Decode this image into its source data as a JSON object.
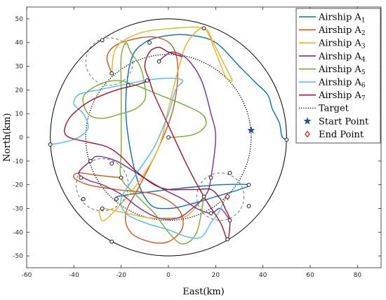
{
  "chart_data": {
    "type": "line",
    "xlabel": "East(km)",
    "ylabel": "North(km)",
    "xlim": [
      -60,
      90
    ],
    "ylim": [
      -55,
      55
    ],
    "xticks": [
      -60,
      -40,
      -20,
      0,
      20,
      40,
      60,
      80
    ],
    "yticks": [
      -50,
      -40,
      -30,
      -20,
      -10,
      0,
      10,
      20,
      30,
      40,
      50
    ],
    "grid": false,
    "legend_position": "top-right",
    "boundary_circle": {
      "cx": 0,
      "cy": 0,
      "r": 50
    },
    "target_circle": {
      "cx": 0,
      "cy": 0,
      "r": 35
    },
    "start_point": [
      35,
      3
    ],
    "end_point": [
      25,
      -25
    ],
    "markers": [
      [
        -28,
        41
      ],
      [
        -24,
        27
      ],
      [
        -20,
        -17
      ],
      [
        -24,
        -11
      ],
      [
        -37,
        -17
      ],
      [
        -33,
        -10
      ],
      [
        -22,
        -26
      ],
      [
        -28,
        -30
      ],
      [
        -36,
        -26
      ],
      [
        -24,
        -44
      ],
      [
        -8,
        40
      ],
      [
        -9,
        24
      ],
      [
        -17,
        22
      ],
      [
        -4,
        32
      ],
      [
        0,
        0
      ],
      [
        15,
        46
      ],
      [
        26,
        -15
      ],
      [
        18,
        -17
      ],
      [
        34,
        -20
      ],
      [
        26,
        -35
      ],
      [
        25,
        -43
      ],
      [
        34,
        -29
      ],
      [
        15,
        -25
      ],
      [
        18,
        -32
      ],
      [
        50,
        -1
      ],
      [
        -50,
        -3
      ]
    ],
    "series": [
      {
        "name": "Airship A1",
        "color": "#0072BD",
        "values": [
          [
            -22,
            -25
          ],
          [
            -16,
            -24
          ],
          [
            -8,
            -23
          ],
          [
            0,
            -22
          ],
          [
            10,
            -21
          ],
          [
            22,
            -20
          ],
          [
            34,
            -20
          ],
          [
            30,
            -22
          ],
          [
            20,
            -25
          ],
          [
            10,
            -28
          ],
          [
            0,
            -30
          ],
          [
            -8,
            -28
          ],
          [
            -14,
            -15
          ],
          [
            -18,
            10
          ],
          [
            -16,
            32
          ],
          [
            -10,
            40
          ],
          [
            0,
            43
          ],
          [
            10,
            43
          ],
          [
            20,
            40
          ],
          [
            30,
            30
          ],
          [
            37,
            23
          ],
          [
            42,
            18
          ],
          [
            44,
            12
          ],
          [
            47,
            6
          ],
          [
            48,
            0.5
          ],
          [
            50,
            -1
          ]
        ]
      },
      {
        "name": "Airship A2",
        "color": "#D95319",
        "values": [
          [
            -24,
            27
          ],
          [
            -26,
            34
          ],
          [
            -22,
            39
          ],
          [
            -12,
            42
          ],
          [
            -4,
            42
          ],
          [
            2,
            38
          ],
          [
            4,
            28
          ],
          [
            2,
            12
          ],
          [
            -4,
            -4
          ],
          [
            -12,
            -20
          ],
          [
            -18,
            -32
          ],
          [
            -16,
            -40
          ],
          [
            -8,
            -44
          ],
          [
            0,
            -44
          ],
          [
            6,
            -38
          ],
          [
            4,
            -30
          ],
          [
            -6,
            -24
          ],
          [
            -22,
            -22
          ],
          [
            -34,
            -20
          ],
          [
            -40,
            -17
          ],
          [
            -38,
            -15
          ],
          [
            -30,
            -16
          ],
          [
            -20,
            -17
          ]
        ]
      },
      {
        "name": "Airship A3",
        "color": "#EDB120",
        "values": [
          [
            -24,
            27
          ],
          [
            -22,
            38
          ],
          [
            -12,
            44
          ],
          [
            2,
            46
          ],
          [
            15,
            46
          ],
          [
            19,
            40
          ],
          [
            24,
            30
          ],
          [
            27,
            24
          ],
          [
            24,
            26
          ],
          [
            20,
            36
          ],
          [
            15,
            46
          ],
          [
            8,
            40
          ],
          [
            4,
            28
          ],
          [
            0,
            12
          ],
          [
            -4,
            -4
          ],
          [
            -12,
            -18
          ],
          [
            -20,
            -28
          ],
          [
            -27,
            -35
          ],
          [
            -29,
            -33
          ],
          [
            -28,
            -30
          ],
          [
            -18,
            -32
          ],
          [
            -8,
            -34
          ],
          [
            0,
            -34
          ],
          [
            8,
            -33
          ],
          [
            15,
            -25
          ]
        ]
      },
      {
        "name": "Airship A4",
        "color": "#7E2F8E",
        "values": [
          [
            -4,
            32
          ],
          [
            -2,
            34
          ],
          [
            2,
            36
          ],
          [
            8,
            33
          ],
          [
            14,
            24
          ],
          [
            18,
            10
          ],
          [
            20,
            0
          ],
          [
            18,
            -17
          ],
          [
            16,
            -24
          ],
          [
            10,
            -30
          ],
          [
            4,
            -34
          ],
          [
            -4,
            -34
          ],
          [
            -12,
            -30
          ],
          [
            -20,
            -24
          ],
          [
            -28,
            -20
          ],
          [
            -34,
            -18
          ],
          [
            -38,
            -15
          ],
          [
            -33,
            -10
          ],
          [
            -30,
            -8
          ],
          [
            -22,
            -10
          ],
          [
            -12,
            -16
          ],
          [
            -2,
            -22
          ],
          [
            6,
            -26
          ],
          [
            12,
            -30
          ],
          [
            18,
            -32
          ],
          [
            22,
            -30
          ],
          [
            26,
            -35
          ]
        ]
      },
      {
        "name": "Airship A5",
        "color": "#77AC30",
        "values": [
          [
            0,
            0
          ],
          [
            4,
            0.2
          ],
          [
            10,
            1
          ],
          [
            14,
            3
          ],
          [
            16,
            6
          ],
          [
            14,
            10
          ],
          [
            6,
            14
          ],
          [
            -4,
            18
          ],
          [
            -14,
            22
          ],
          [
            -22,
            24
          ],
          [
            -30,
            22
          ],
          [
            -36,
            17
          ],
          [
            -34,
            10
          ],
          [
            -28,
            8
          ],
          [
            -20,
            10
          ],
          [
            -14,
            12
          ],
          [
            -10,
            16
          ],
          [
            -10,
            22
          ],
          [
            -12,
            30
          ],
          [
            -16,
            36
          ],
          [
            -18,
            40
          ],
          [
            -20,
            34
          ],
          [
            -20,
            20
          ],
          [
            -20,
            -5
          ],
          [
            -20,
            -17
          ],
          [
            -14,
            -24
          ],
          [
            -6,
            -32
          ],
          [
            0,
            -40
          ],
          [
            6,
            -45
          ],
          [
            12,
            -40
          ],
          [
            15,
            -25
          ]
        ]
      },
      {
        "name": "Airship A6",
        "color": "#4DBEEE",
        "values": [
          [
            -50,
            -3
          ],
          [
            -44,
            -2
          ],
          [
            -38,
            0
          ],
          [
            -34,
            4
          ],
          [
            -36,
            10
          ],
          [
            -40,
            14
          ],
          [
            -38,
            18
          ],
          [
            -30,
            20
          ],
          [
            -20,
            22
          ],
          [
            -10,
            24
          ],
          [
            0,
            25
          ],
          [
            6,
            24
          ],
          [
            3,
            20
          ],
          [
            0,
            10
          ],
          [
            -6,
            -4
          ],
          [
            -14,
            -16
          ],
          [
            -20,
            -26
          ],
          [
            -18,
            -32
          ],
          [
            -10,
            -36
          ],
          [
            0,
            -39
          ],
          [
            8,
            -42
          ],
          [
            14,
            -42
          ],
          [
            18,
            -36
          ],
          [
            21,
            -32
          ],
          [
            24,
            -26
          ],
          [
            25,
            -25
          ]
        ]
      },
      {
        "name": "Airship A7",
        "color": "#A2142F",
        "values": [
          [
            -8,
            24
          ],
          [
            -14,
            22
          ],
          [
            -22,
            20
          ],
          [
            -32,
            16
          ],
          [
            -38,
            12
          ],
          [
            -42,
            8
          ],
          [
            -44,
            3
          ],
          [
            -42,
            0
          ],
          [
            -34,
            -2
          ],
          [
            -26,
            -4
          ],
          [
            -20,
            -8
          ],
          [
            -14,
            -14
          ],
          [
            -6,
            -20
          ],
          [
            0,
            -22
          ],
          [
            6,
            -22
          ],
          [
            12,
            -22
          ],
          [
            18,
            -22
          ],
          [
            22,
            -26
          ],
          [
            24,
            -30
          ],
          [
            26,
            -35
          ],
          [
            25,
            -43
          ],
          [
            22,
            -36
          ],
          [
            15,
            -25
          ],
          [
            8,
            -12
          ],
          [
            0,
            5
          ],
          [
            -6,
            18
          ],
          [
            -8,
            24
          ],
          [
            -10,
            30
          ],
          [
            -8,
            36
          ],
          [
            -4,
            38
          ],
          [
            0,
            36
          ],
          [
            6,
            34
          ]
        ]
      }
    ],
    "target": {
      "name": "Target",
      "color": "#000000"
    },
    "legend": [
      {
        "label": "Airship A",
        "sub": "1",
        "kind": "line",
        "color": "#0072BD"
      },
      {
        "label": "Airship A",
        "sub": "2",
        "kind": "line",
        "color": "#D95319"
      },
      {
        "label": "Airship A",
        "sub": "3",
        "kind": "line",
        "color": "#EDB120"
      },
      {
        "label": "Airship A",
        "sub": "4",
        "kind": "line",
        "color": "#7E2F8E"
      },
      {
        "label": "Airship A",
        "sub": "5",
        "kind": "line",
        "color": "#77AC30"
      },
      {
        "label": "Airship A",
        "sub": "6",
        "kind": "line",
        "color": "#4DBEEE"
      },
      {
        "label": "Airship A",
        "sub": "7",
        "kind": "line",
        "color": "#A2142F"
      },
      {
        "label": "Target",
        "sub": "",
        "kind": "dotted",
        "color": "#000000"
      },
      {
        "label": "Start Point",
        "sub": "",
        "kind": "star",
        "color": "#1F4E9E"
      },
      {
        "label": "End Point",
        "sub": "",
        "kind": "diamond",
        "color": "#E0201B"
      }
    ]
  }
}
